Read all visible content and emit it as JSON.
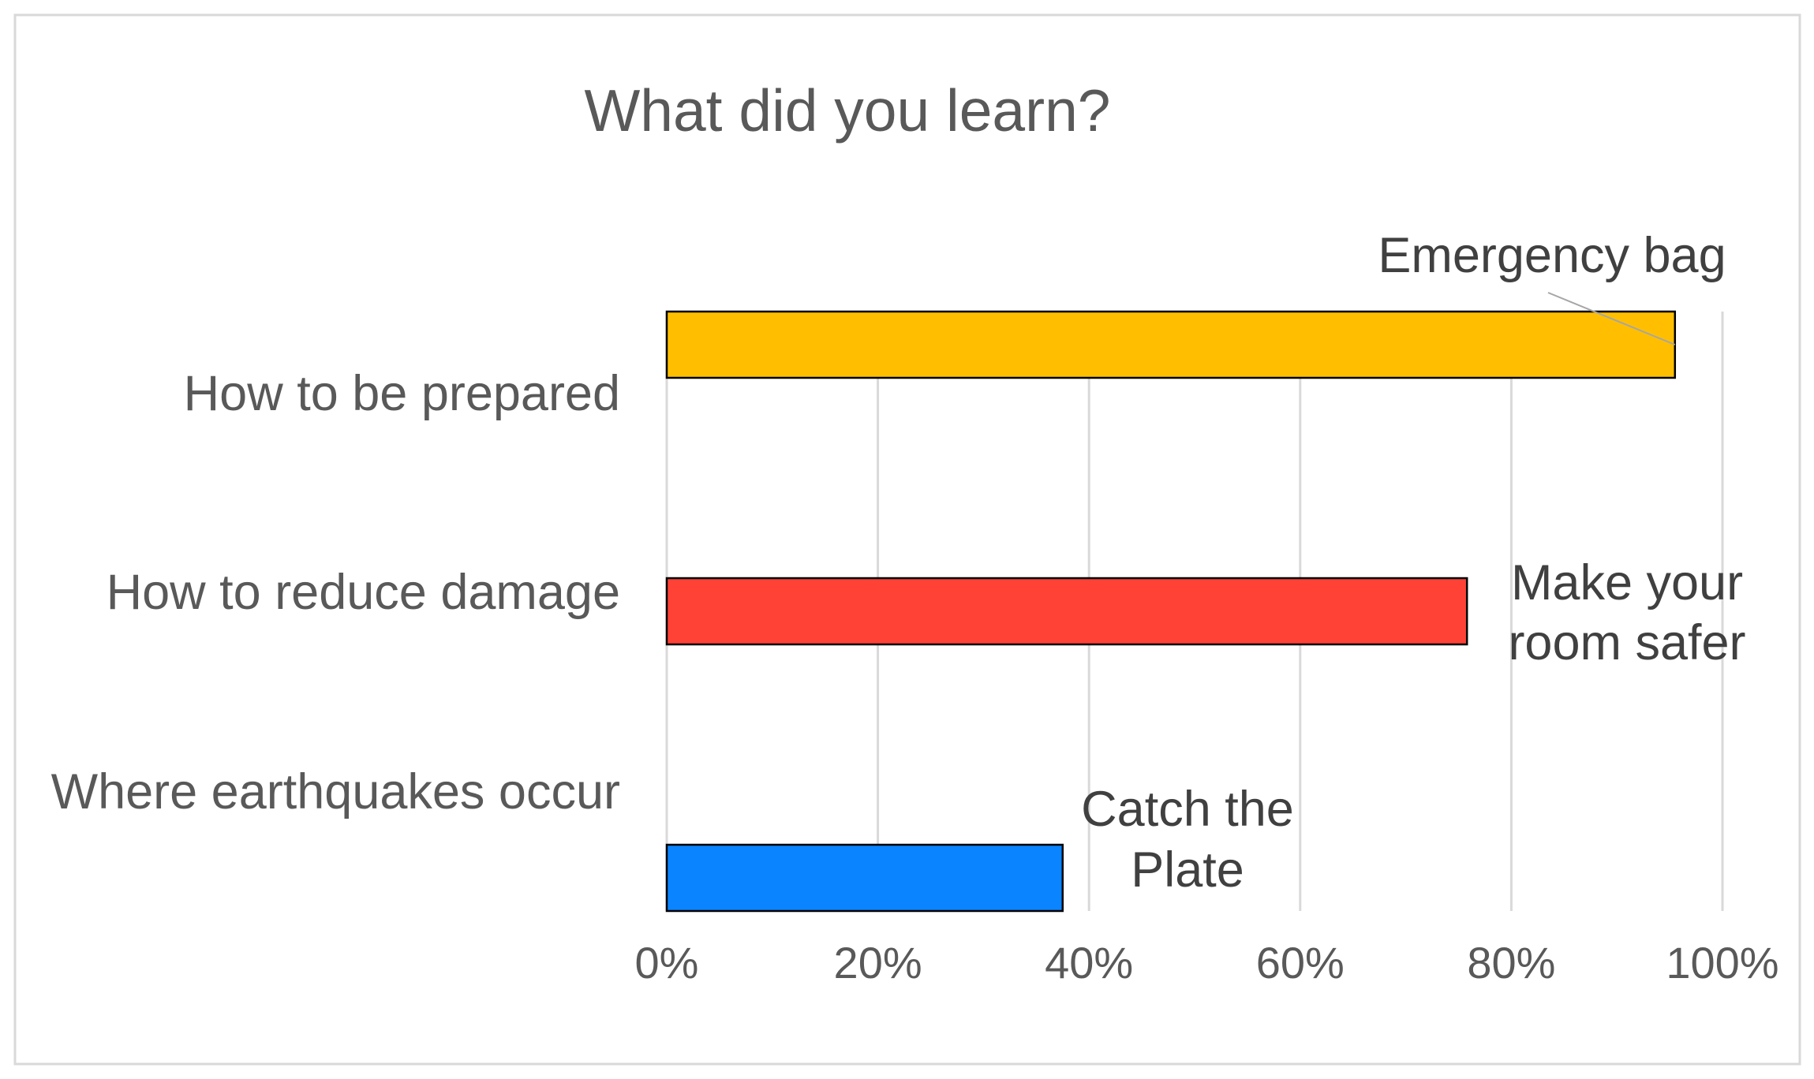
{
  "chart_data": {
    "type": "bar",
    "orientation": "horizontal",
    "title": "What did you learn?",
    "categories": [
      "How to be prepared",
      "How to reduce damage",
      "Where earthquakes occur"
    ],
    "values": [
      95.5,
      75.8,
      37.5
    ],
    "colors": [
      "#FFBF00",
      "#FF4136",
      "#0A84FF"
    ],
    "annotations": [
      {
        "lines": [
          "Emergency bag"
        ]
      },
      {
        "lines": [
          "Make your",
          "room safer"
        ]
      },
      {
        "lines": [
          "Catch the",
          "Plate"
        ]
      }
    ],
    "xlim": [
      0,
      100
    ],
    "xticks": [
      0,
      20,
      40,
      60,
      80,
      100
    ],
    "tick_suffix": "%",
    "grid": true,
    "legend": "none"
  }
}
